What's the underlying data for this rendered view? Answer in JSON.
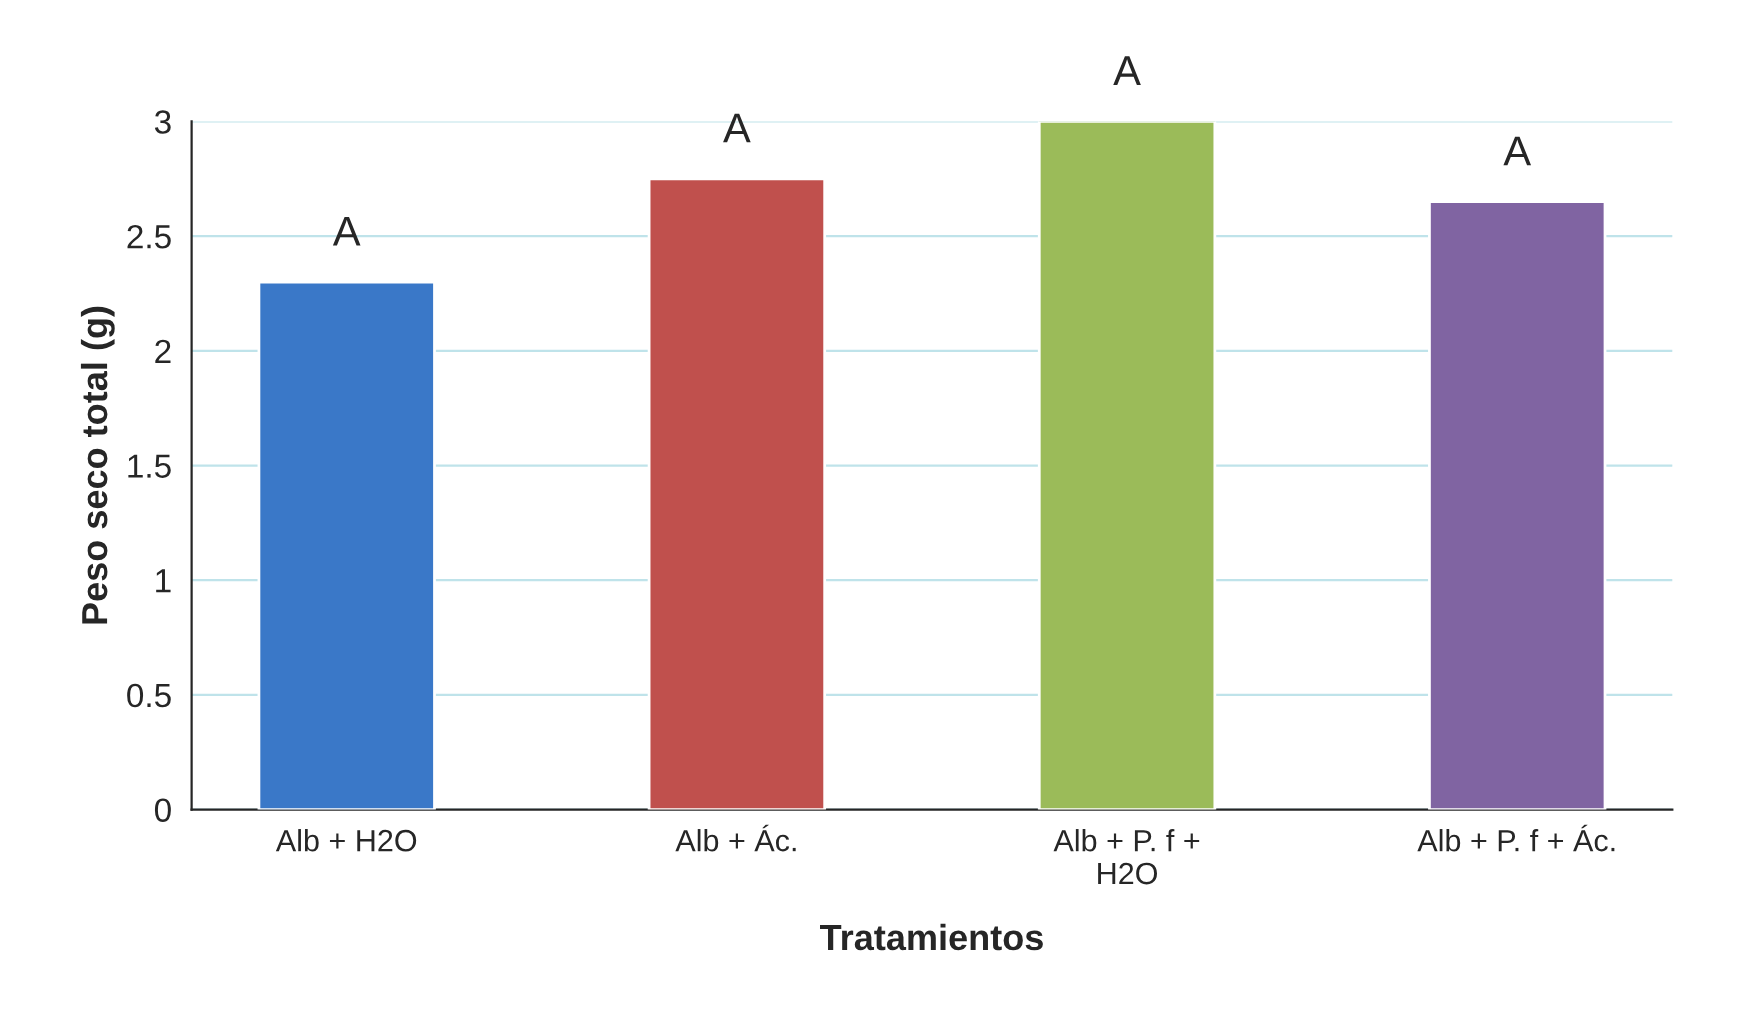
{
  "chart_data": {
    "type": "bar",
    "xlabel": "Tratamientos",
    "ylabel": "Peso seco total (g)",
    "categories": [
      "Alb + H2O",
      "Alb + Ác.",
      "Alb + P. f +\nH2O",
      "Alb + P. f + Ác."
    ],
    "values": [
      2.3,
      2.75,
      3.0,
      2.65
    ],
    "colors": [
      "#3a78c8",
      "#c0504d",
      "#9bbb59",
      "#8064a2"
    ],
    "ylim": [
      0,
      3
    ],
    "yticks": [
      0,
      0.5,
      1,
      1.5,
      2,
      2.5,
      3
    ],
    "grid": "y",
    "annotations": [
      {
        "text": "A",
        "x": "Alb + H2O",
        "y": 2.3
      },
      {
        "text": "A",
        "x": "Alb + Ác.",
        "y": 2.75
      },
      {
        "text": "A",
        "x": "Alb + P. f +\nH2O",
        "y": 3.0
      },
      {
        "text": "A",
        "x": "Alb + P. f + Ác.",
        "y": 2.65
      }
    ]
  }
}
